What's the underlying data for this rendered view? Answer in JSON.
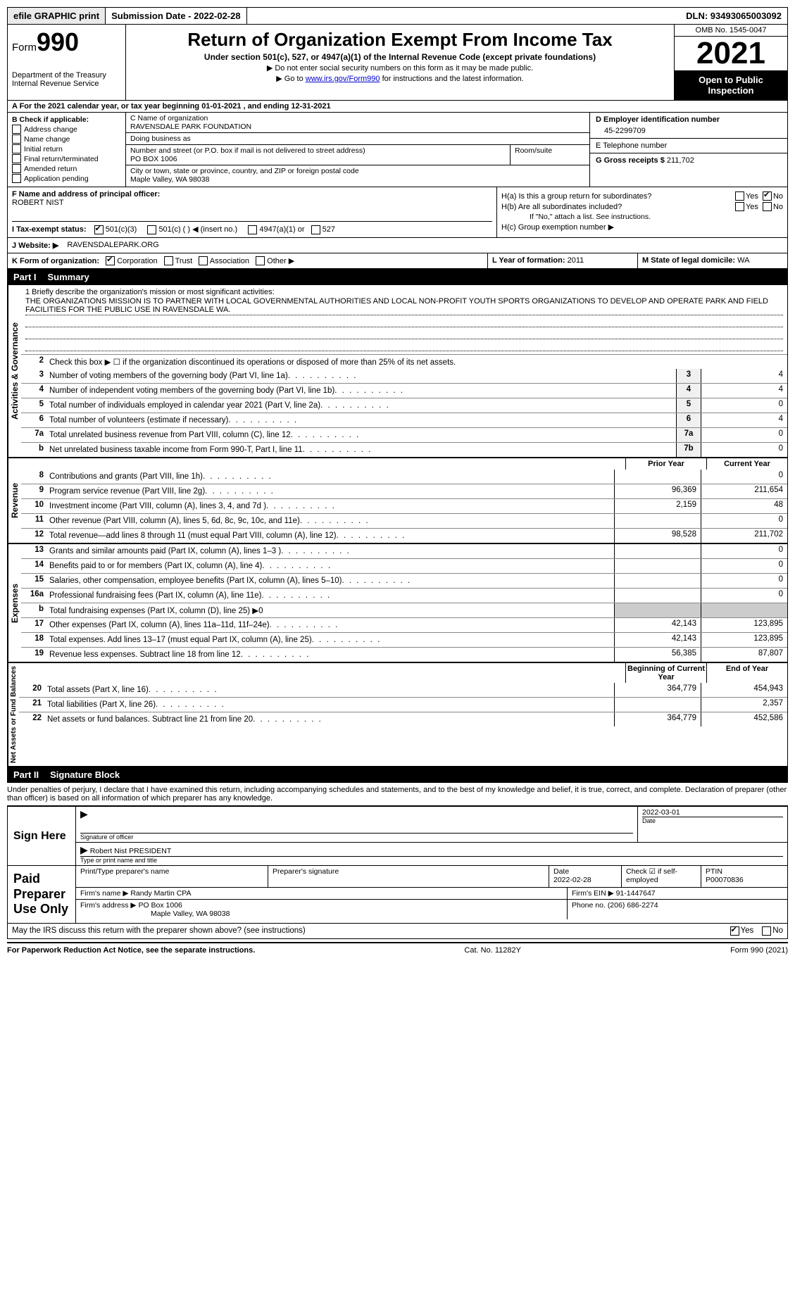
{
  "top": {
    "efile": "efile GRAPHIC print",
    "submission": "Submission Date - 2022-02-28",
    "dln": "DLN: 93493065003092"
  },
  "header": {
    "form_prefix": "Form",
    "form_num": "990",
    "dept1": "Department of the Treasury",
    "dept2": "Internal Revenue Service",
    "title": "Return of Organization Exempt From Income Tax",
    "subtitle": "Under section 501(c), 527, or 4947(a)(1) of the Internal Revenue Code (except private foundations)",
    "note1": "▶ Do not enter social security numbers on this form as it may be made public.",
    "note2_pre": "▶ Go to ",
    "note2_link": "www.irs.gov/Form990",
    "note2_post": " for instructions and the latest information.",
    "omb": "OMB No. 1545-0047",
    "year": "2021",
    "open": "Open to Public Inspection"
  },
  "row_a": "A For the 2021 calendar year, or tax year beginning 01-01-2021   , and ending 12-31-2021",
  "col_b": {
    "header": "B Check if applicable:",
    "opts": [
      "Address change",
      "Name change",
      "Initial return",
      "Final return/terminated",
      "Amended return",
      "Application pending"
    ]
  },
  "col_c": {
    "name_lbl": "C Name of organization",
    "name": "RAVENSDALE PARK FOUNDATION",
    "dba_lbl": "Doing business as",
    "dba": "",
    "addr_lbl": "Number and street (or P.O. box if mail is not delivered to street address)",
    "addr": "PO BOX 1006",
    "room_lbl": "Room/suite",
    "city_lbl": "City or town, state or province, country, and ZIP or foreign postal code",
    "city": "Maple Valley, WA  98038"
  },
  "col_d": {
    "ein_lbl": "D Employer identification number",
    "ein": "45-2299709",
    "tel_lbl": "E Telephone number",
    "tel": "",
    "gross_lbl": "G Gross receipts $",
    "gross": "211,702"
  },
  "col_f": {
    "lbl": "F Name and address of principal officer:",
    "name": "ROBERT NIST"
  },
  "col_h": {
    "ha": "H(a)  Is this a group return for subordinates?",
    "hb": "H(b)  Are all subordinates included?",
    "hb_note": "If \"No,\" attach a list. See instructions.",
    "hc": "H(c)  Group exemption number ▶",
    "yes": "Yes",
    "no": "No"
  },
  "row_i": {
    "lbl": "I   Tax-exempt status:",
    "o1": "501(c)(3)",
    "o2": "501(c) (  ) ◀ (insert no.)",
    "o3": "4947(a)(1) or",
    "o4": "527"
  },
  "row_j": {
    "lbl": "J   Website: ▶",
    "val": "RAVENSDALEPARK.ORG"
  },
  "row_k": {
    "lbl": "K Form of organization:",
    "o1": "Corporation",
    "o2": "Trust",
    "o3": "Association",
    "o4": "Other ▶",
    "l_lbl": "L Year of formation:",
    "l_val": "2011",
    "m_lbl": "M State of legal domicile:",
    "m_val": "WA"
  },
  "part1": {
    "num": "Part I",
    "title": "Summary"
  },
  "mission": {
    "lbl": "1   Briefly describe the organization's mission or most significant activities:",
    "text": "THE ORGANIZATIONS MISSION IS TO PARTNER WITH LOCAL GOVERNMENTAL AUTHORITIES AND LOCAL NON-PROFIT YOUTH SPORTS ORGANIZATIONS TO DEVELOP AND OPERATE PARK AND FIELD FACILITIES FOR THE PUBLIC USE IN RAVENSDALE WA."
  },
  "line2": "Check this box ▶ ☐ if the organization discontinued its operations or disposed of more than 25% of its net assets.",
  "tabs": {
    "gov": "Activities & Governance",
    "rev": "Revenue",
    "exp": "Expenses",
    "net": "Net Assets or Fund Balances"
  },
  "cols": {
    "prior": "Prior Year",
    "current": "Current Year",
    "begin": "Beginning of Current Year",
    "end": "End of Year"
  },
  "lines_gov": [
    {
      "n": "3",
      "d": "Number of voting members of the governing body (Part VI, line 1a)",
      "box": "3",
      "v": "4"
    },
    {
      "n": "4",
      "d": "Number of independent voting members of the governing body (Part VI, line 1b)",
      "box": "4",
      "v": "4"
    },
    {
      "n": "5",
      "d": "Total number of individuals employed in calendar year 2021 (Part V, line 2a)",
      "box": "5",
      "v": "0"
    },
    {
      "n": "6",
      "d": "Total number of volunteers (estimate if necessary)",
      "box": "6",
      "v": "4"
    },
    {
      "n": "7a",
      "d": "Total unrelated business revenue from Part VIII, column (C), line 12",
      "box": "7a",
      "v": "0"
    },
    {
      "n": "b",
      "d": "Net unrelated business taxable income from Form 990-T, Part I, line 11",
      "box": "7b",
      "v": "0"
    }
  ],
  "lines_rev": [
    {
      "n": "8",
      "d": "Contributions and grants (Part VIII, line 1h)",
      "p": "",
      "c": "0"
    },
    {
      "n": "9",
      "d": "Program service revenue (Part VIII, line 2g)",
      "p": "96,369",
      "c": "211,654"
    },
    {
      "n": "10",
      "d": "Investment income (Part VIII, column (A), lines 3, 4, and 7d )",
      "p": "2,159",
      "c": "48"
    },
    {
      "n": "11",
      "d": "Other revenue (Part VIII, column (A), lines 5, 6d, 8c, 9c, 10c, and 11e)",
      "p": "",
      "c": "0"
    },
    {
      "n": "12",
      "d": "Total revenue—add lines 8 through 11 (must equal Part VIII, column (A), line 12)",
      "p": "98,528",
      "c": "211,702"
    }
  ],
  "lines_exp": [
    {
      "n": "13",
      "d": "Grants and similar amounts paid (Part IX, column (A), lines 1–3 )",
      "p": "",
      "c": "0"
    },
    {
      "n": "14",
      "d": "Benefits paid to or for members (Part IX, column (A), line 4)",
      "p": "",
      "c": "0"
    },
    {
      "n": "15",
      "d": "Salaries, other compensation, employee benefits (Part IX, column (A), lines 5–10)",
      "p": "",
      "c": "0"
    },
    {
      "n": "16a",
      "d": "Professional fundraising fees (Part IX, column (A), line 11e)",
      "p": "",
      "c": "0"
    },
    {
      "n": "b",
      "d": "Total fundraising expenses (Part IX, column (D), line 25) ▶0",
      "shaded": true
    },
    {
      "n": "17",
      "d": "Other expenses (Part IX, column (A), lines 11a–11d, 11f–24e)",
      "p": "42,143",
      "c": "123,895"
    },
    {
      "n": "18",
      "d": "Total expenses. Add lines 13–17 (must equal Part IX, column (A), line 25)",
      "p": "42,143",
      "c": "123,895"
    },
    {
      "n": "19",
      "d": "Revenue less expenses. Subtract line 18 from line 12",
      "p": "56,385",
      "c": "87,807"
    }
  ],
  "lines_net": [
    {
      "n": "20",
      "d": "Total assets (Part X, line 16)",
      "p": "364,779",
      "c": "454,943"
    },
    {
      "n": "21",
      "d": "Total liabilities (Part X, line 26)",
      "p": "",
      "c": "2,357"
    },
    {
      "n": "22",
      "d": "Net assets or fund balances. Subtract line 21 from line 20",
      "p": "364,779",
      "c": "452,586"
    }
  ],
  "part2": {
    "num": "Part II",
    "title": "Signature Block"
  },
  "penalties": "Under penalties of perjury, I declare that I have examined this return, including accompanying schedules and statements, and to the best of my knowledge and belief, it is true, correct, and complete. Declaration of preparer (other than officer) is based on all information of which preparer has any knowledge.",
  "sign": {
    "here": "Sign Here",
    "sig_lbl": "Signature of officer",
    "date_lbl": "Date",
    "date": "2022-03-01",
    "name": "Robert Nist PRESIDENT",
    "name_lbl": "Type or print name and title"
  },
  "paid": {
    "here": "Paid Preparer Use Only",
    "h1": "Print/Type preparer's name",
    "h2": "Preparer's signature",
    "h3_lbl": "Date",
    "h3": "2022-02-28",
    "h4_lbl": "Check ☑ if self-employed",
    "h5_lbl": "PTIN",
    "h5": "P00070836",
    "firm_lbl": "Firm's name   ▶",
    "firm": "Randy Martin CPA",
    "ein_lbl": "Firm's EIN ▶",
    "ein": "91-1447647",
    "addr_lbl": "Firm's address ▶",
    "addr": "PO Box 1006",
    "addr2": "Maple Valley, WA  98038",
    "phone_lbl": "Phone no.",
    "phone": "(206) 686-2274"
  },
  "discuss": {
    "q": "May the IRS discuss this return with the preparer shown above? (see instructions)",
    "yes": "Yes",
    "no": "No"
  },
  "footer": {
    "left": "For Paperwork Reduction Act Notice, see the separate instructions.",
    "mid": "Cat. No. 11282Y",
    "right": "Form 990 (2021)"
  }
}
